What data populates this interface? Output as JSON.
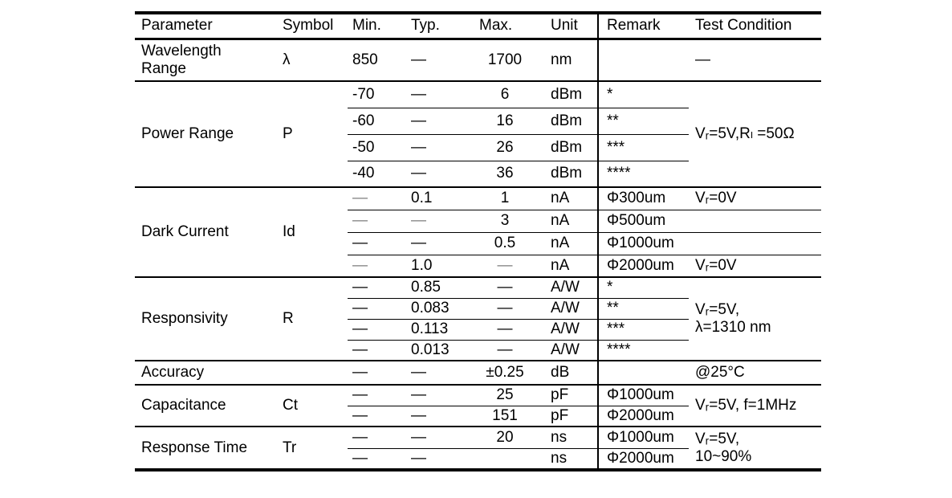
{
  "page": {
    "background": "#ffffff",
    "text_color": "#000000",
    "border_color": "#000000",
    "muted_dash_color": "#7d7d7d"
  },
  "table": {
    "columns": [
      {
        "key": "parameter",
        "label": "Parameter"
      },
      {
        "key": "symbol",
        "label": "Symbol"
      },
      {
        "key": "min",
        "label": "Min."
      },
      {
        "key": "typ",
        "label": "Typ."
      },
      {
        "key": "max",
        "label": "Max."
      },
      {
        "key": "unit",
        "label": "Unit"
      },
      {
        "key": "remark",
        "label": "Remark"
      },
      {
        "key": "test",
        "label": "Test Condition"
      }
    ],
    "sections": [
      {
        "parameter": "Wavelength\nRange",
        "symbol": "λ",
        "rows": [
          {
            "min": "850",
            "typ": "—",
            "max": "1700",
            "unit": "nm",
            "remark": "",
            "test": "—"
          }
        ]
      },
      {
        "parameter": "Power Range",
        "symbol": "P",
        "test_span": "Vᵣ=5V,Rₗ =50Ω",
        "rows": [
          {
            "min": "-70",
            "typ": "—",
            "max": "6",
            "unit": "dBm",
            "remark": "*"
          },
          {
            "min": "-60",
            "typ": "—",
            "max": "16",
            "unit": "dBm",
            "remark": "**"
          },
          {
            "min": "-50",
            "typ": "—",
            "max": "26",
            "unit": "dBm",
            "remark": "***"
          },
          {
            "min": "-40",
            "typ": "—",
            "max": "36",
            "unit": "dBm",
            "remark": "****"
          }
        ]
      },
      {
        "parameter": "Dark Current",
        "symbol": "Id",
        "divider_full": true,
        "rows": [
          {
            "min": {
              "t": "—",
              "muted": true
            },
            "typ": "0.1",
            "max": "1",
            "unit": "nA",
            "remark": "Φ300um",
            "test": "Vᵣ=0V"
          },
          {
            "min": {
              "t": "—",
              "muted": true
            },
            "typ": {
              "t": "—",
              "muted": true
            },
            "max": "3",
            "unit": "nA",
            "remark": "Φ500um",
            "test": ""
          },
          {
            "min": "—",
            "typ": "—",
            "max": "0.5",
            "unit": "nA",
            "remark": "Φ1000um",
            "test": ""
          },
          {
            "min": {
              "t": "—",
              "muted": true
            },
            "typ": "1.0",
            "max": {
              "t": "—",
              "muted": true
            },
            "unit": "nA",
            "remark": "Φ2000um",
            "test": "Vᵣ=0V"
          }
        ]
      },
      {
        "parameter": "Responsivity",
        "symbol": "R",
        "test_span": "Vᵣ=5V,\nλ=1310 nm",
        "rows": [
          {
            "min": "—",
            "typ": "0.85",
            "max": "—",
            "unit": "A/W",
            "remark": "*"
          },
          {
            "min": "—",
            "typ": "0.083",
            "max": "—",
            "unit": "A/W",
            "remark": "**"
          },
          {
            "min": "—",
            "typ": "0.113",
            "max": "—",
            "unit": "A/W",
            "remark": "***"
          },
          {
            "min": "—",
            "typ": "0.013",
            "max": "—",
            "unit": "A/W",
            "remark": "****"
          }
        ]
      },
      {
        "parameter": "Accuracy",
        "symbol": "",
        "rows": [
          {
            "min": "—",
            "typ": "—",
            "max": "±0.25",
            "unit": "dB",
            "remark": "",
            "test": "@25°C"
          }
        ]
      },
      {
        "parameter": "Capacitance",
        "symbol": "Ct",
        "test_span": "Vᵣ=5V, f=1MHz",
        "rows": [
          {
            "min": "—",
            "typ": "—",
            "max": "25",
            "unit": "pF",
            "remark": "Φ1000um"
          },
          {
            "min": "—",
            "typ": "—",
            "max": "151",
            "unit": "pF",
            "remark": "Φ2000um"
          }
        ]
      },
      {
        "parameter": "Response Time",
        "symbol": "Tr",
        "test_span": "Vᵣ=5V,\n10~90%",
        "rows": [
          {
            "min": "—",
            "typ": "—",
            "max": "20",
            "unit": "ns",
            "remark": "Φ1000um"
          },
          {
            "min": "—",
            "typ": "—",
            "max": "",
            "unit": "ns",
            "remark": "Φ2000um"
          }
        ]
      }
    ]
  }
}
